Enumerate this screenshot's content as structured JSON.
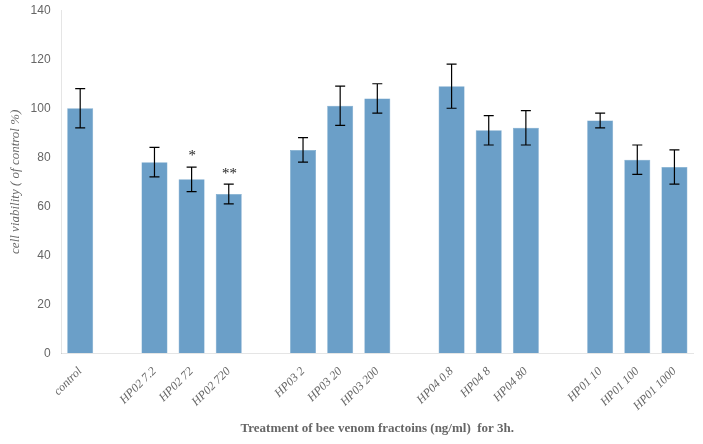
{
  "chart_data": {
    "type": "bar",
    "xlabel": "Treatment of bee venom fractoins (ng/ml)  for 3h.",
    "ylabel": "cell viability ( of control %)",
    "categories": [
      "control",
      null,
      "HP02 7.2",
      "HP02 72",
      "HP02 720",
      null,
      "HP03 2",
      "HP03 20",
      "HP03 200",
      null,
      "HP04 0.8",
      "HP04 8",
      "HP04 80",
      null,
      "HP01 10",
      "HP01 100",
      "HP01 1000"
    ],
    "values": [
      100,
      null,
      78,
      71,
      65,
      null,
      83,
      101,
      104,
      null,
      109,
      91,
      92,
      null,
      95,
      79,
      76
    ],
    "errors": [
      8,
      null,
      6,
      5,
      4,
      null,
      5,
      8,
      6,
      null,
      9,
      6,
      7,
      null,
      3,
      6,
      7
    ],
    "color": "#6b9fc8",
    "annotations": [
      {
        "category": "HP02 72",
        "text": "*"
      },
      {
        "category": "HP02 720",
        "text": "**"
      }
    ],
    "ylim": [
      0,
      140
    ],
    "yticks": [
      0,
      20,
      40,
      60,
      80,
      100,
      120,
      140
    ],
    "grid": false
  }
}
